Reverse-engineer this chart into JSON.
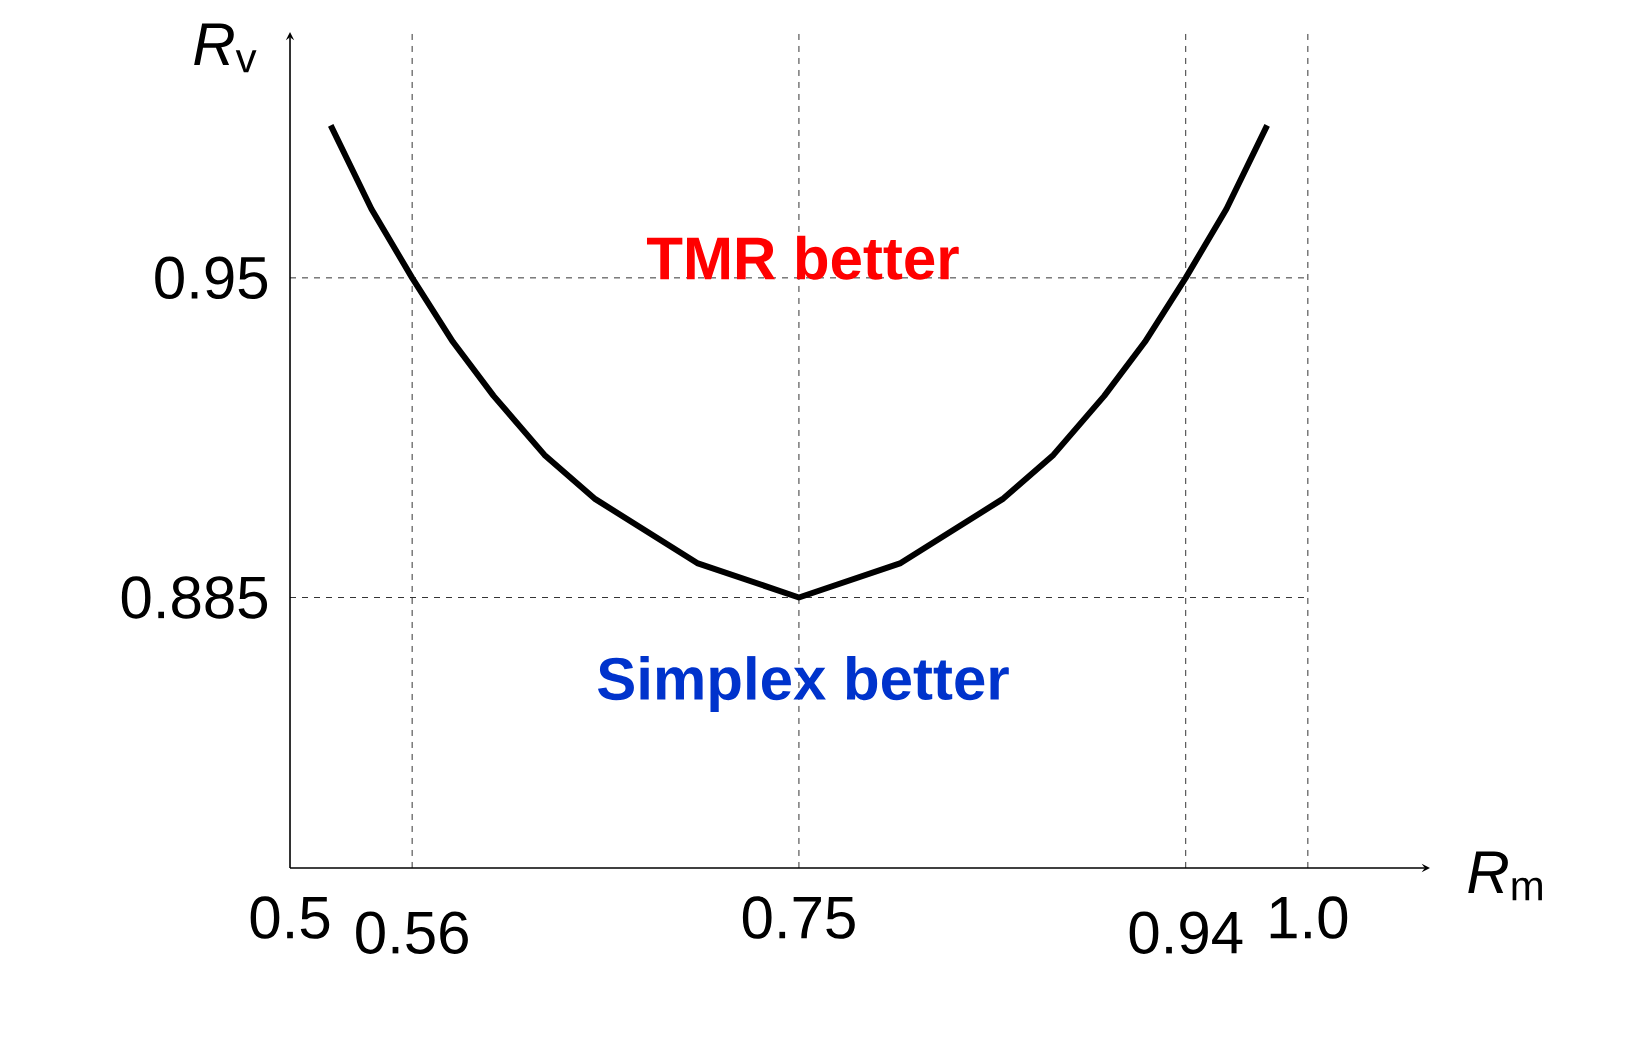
{
  "chart_data": {
    "type": "line",
    "xlabel": "*R*$_{m}$",
    "ylabel": "*R*$_{v}$",
    "x": [
      0.52,
      0.54,
      0.56,
      0.58,
      0.6,
      0.625,
      0.65,
      0.7,
      0.75,
      0.8,
      0.85,
      0.875,
      0.9,
      0.92,
      0.94,
      0.96,
      0.98
    ],
    "series": [
      {
        "color": "#000000",
        "values": [
          0.981,
          0.964,
          0.95,
          0.937,
          0.926,
          0.914,
          0.905,
          0.892,
          0.885,
          0.892,
          0.905,
          0.914,
          0.926,
          0.937,
          0.95,
          0.964,
          0.981
        ]
      }
    ],
    "xlim": [
      0.5,
      1.06
    ],
    "ylim": [
      0.83,
      1.0
    ],
    "xticks": [
      0.5,
      0.56,
      0.75,
      0.94,
      {
        "value": 1.0,
        "label": "1.0"
      }
    ],
    "yticks": [
      0.885,
      0.95
    ],
    "ref_lines": [
      {
        "axis": "x",
        "value": 0.56,
        "line_style": "dashed"
      },
      {
        "axis": "x",
        "value": 0.75,
        "line_style": "dashed"
      },
      {
        "axis": "x",
        "value": 0.94,
        "line_style": "dashed"
      },
      {
        "axis": "x",
        "value": 1.0,
        "line_style": "dashed"
      },
      {
        "axis": "y",
        "value": 0.95,
        "line_style": "dashed"
      },
      {
        "axis": "y",
        "value": 0.885,
        "line_style": "dashed"
      }
    ],
    "annotations": [
      "TMR better",
      "Simplex better"
    ],
    "grid": false,
    "marker": "none",
    "line_style": "solid"
  }
}
